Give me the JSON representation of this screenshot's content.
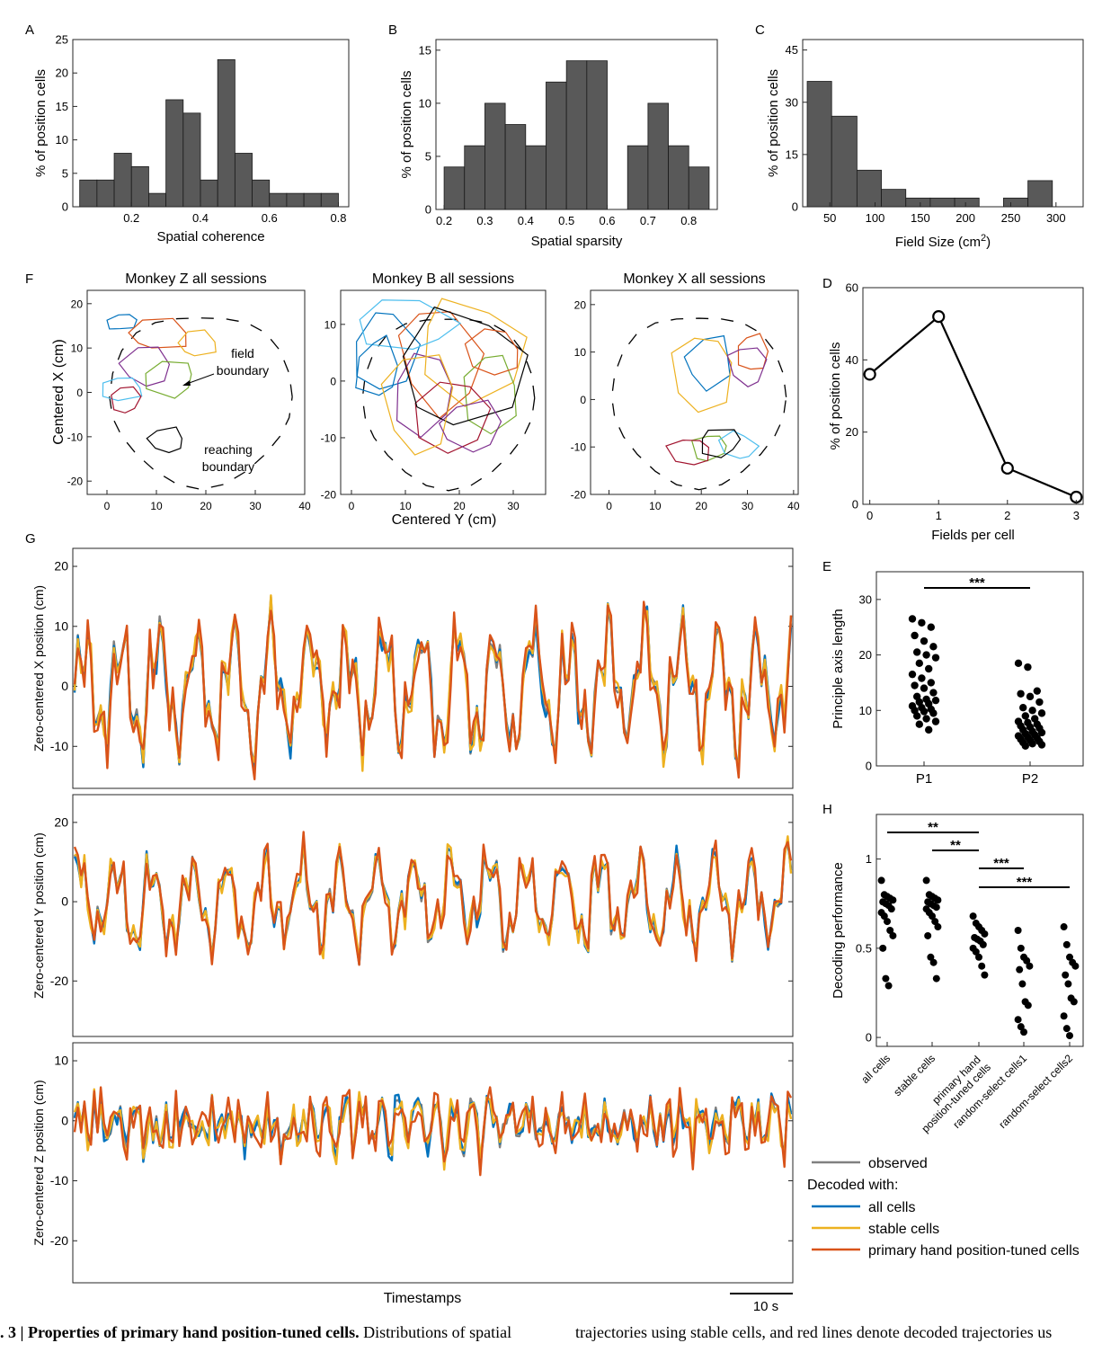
{
  "panels": {
    "A": {
      "label": "A",
      "xlabel": "Spatial coherence",
      "ylabel": "% of position cells"
    },
    "B": {
      "label": "B",
      "xlabel": "Spatial sparsity",
      "ylabel": "% of position cells"
    },
    "C": {
      "label": "C",
      "xlabel": "Field Size (cm",
      "xlabel_sup": "2",
      "xlabel_tail": ")",
      "ylabel": "% of position cells"
    },
    "D": {
      "label": "D",
      "xlabel": "Fields per cell",
      "ylabel": "% of position cells"
    },
    "E": {
      "label": "E",
      "ylabel": "Principle axis length",
      "sig": "***"
    },
    "F": {
      "label": "F",
      "titles": [
        "Monkey Z all sessions",
        "Monkey B all sessions",
        "Monkey X all sessions"
      ],
      "xlabel": "Centered Y (cm)",
      "ylabel": "Centered X (cm)",
      "annotations": [
        "field",
        "boundary",
        "reaching",
        "boundary"
      ]
    },
    "G": {
      "label": "G",
      "ylabels": [
        "Zero-centered X position (cm)",
        "Zero-centered Y position (cm)",
        "Zero-centered Z position (cm)"
      ],
      "xlabel": "Timestamps",
      "scalebar": "10 s"
    },
    "H": {
      "label": "H",
      "ylabel": "Decoding performance",
      "sig": [
        "**",
        "**",
        "***",
        "***"
      ]
    }
  },
  "legend": {
    "observed": "observed",
    "header": "Decoded with:",
    "all": "all cells",
    "stable": "stable cells",
    "primary": "primary hand position-tuned cells"
  },
  "caption": {
    "left_bold": ". 3 | Properties of primary hand position-tuned cells.",
    "left_rest": " Distributions of spatial",
    "right": "trajectories using stable cells, and red lines denote decoded trajectories us"
  },
  "colors": {
    "bar": "#595959",
    "observed": "#808080",
    "all": "#0072BD",
    "stable": "#EDB120",
    "primary": "#D95319"
  },
  "chart_data": [
    {
      "panel": "A",
      "type": "bar",
      "bin_edges": [
        0.05,
        0.1,
        0.15,
        0.2,
        0.25,
        0.3,
        0.35,
        0.4,
        0.45,
        0.5,
        0.55,
        0.6,
        0.65,
        0.7,
        0.75,
        0.8
      ],
      "values": [
        4,
        4,
        8,
        6,
        2,
        16,
        14,
        4,
        22,
        8,
        4,
        2,
        2,
        2,
        2
      ],
      "xlim": [
        0.03,
        0.83
      ],
      "ylim": [
        0,
        25
      ],
      "xticks": [
        0.2,
        0.4,
        0.6,
        0.8
      ],
      "yticks": [
        0,
        5,
        10,
        15,
        20,
        25
      ],
      "xlabel": "Spatial coherence",
      "ylabel": "% of position cells"
    },
    {
      "panel": "B",
      "type": "bar",
      "bin_edges": [
        0.2,
        0.25,
        0.3,
        0.35,
        0.4,
        0.45,
        0.5,
        0.55,
        0.6,
        0.65,
        0.7,
        0.75,
        0.8,
        0.85
      ],
      "values": [
        4,
        6,
        10,
        8,
        6,
        12,
        14,
        14,
        0,
        6,
        10,
        6,
        4
      ],
      "xlim": [
        0.18,
        0.87
      ],
      "ylim": [
        0,
        16
      ],
      "xticks": [
        0.2,
        0.3,
        0.4,
        0.5,
        0.6,
        0.7,
        0.8
      ],
      "yticks": [
        0,
        5,
        10,
        15
      ],
      "xlabel": "Spatial sparsity",
      "ylabel": "% of position cells"
    },
    {
      "panel": "C",
      "type": "bar",
      "bin_edges": [
        25,
        52,
        80,
        107,
        134,
        161,
        188,
        215,
        242,
        269,
        296,
        323
      ],
      "values": [
        36,
        26,
        10.5,
        5,
        2.5,
        2.5,
        2.5,
        0,
        2.5,
        7.5,
        0,
        5
      ],
      "xlim": [
        20,
        330
      ],
      "ylim": [
        0,
        48
      ],
      "xticks": [
        50,
        100,
        150,
        200,
        250,
        300
      ],
      "yticks": [
        0,
        15,
        30,
        45
      ],
      "xlabel": "Field Size (cm2)",
      "ylabel": "% of position cells"
    },
    {
      "panel": "D",
      "type": "line",
      "x": [
        0,
        1,
        2,
        3
      ],
      "y": [
        36,
        52,
        10,
        2
      ],
      "xlim": [
        -0.1,
        3.1
      ],
      "ylim": [
        0,
        60
      ],
      "xticks": [
        0,
        1,
        2,
        3
      ],
      "yticks": [
        0,
        20,
        40,
        60
      ],
      "xlabel": "Fields per cell",
      "ylabel": "% of position cells"
    },
    {
      "panel": "E",
      "type": "scatter",
      "categories": [
        "P1",
        "P2"
      ],
      "ylim": [
        0,
        35
      ],
      "yticks": [
        0,
        10,
        20,
        30
      ],
      "series": [
        {
          "name": "P1",
          "values": [
            26.5,
            25.8,
            25,
            23.5,
            22.5,
            21.5,
            20.5,
            20,
            19.5,
            18.5,
            17.5,
            16.5,
            15.8,
            15,
            14.5,
            14,
            13.2,
            12.5,
            12,
            11.8,
            11.5,
            11.2,
            10.8,
            10.5,
            10.2,
            10,
            9.8,
            9.5,
            9,
            8.5,
            8,
            7.5,
            6.5
          ]
        },
        {
          "name": "P2",
          "values": [
            18.5,
            17.8,
            13.5,
            13,
            12.5,
            11.5,
            10.5,
            10,
            9.5,
            9,
            8.5,
            8,
            7.8,
            7.5,
            7.2,
            7,
            6.8,
            6.5,
            6.2,
            6,
            5.8,
            5.6,
            5.4,
            5.2,
            5,
            4.8,
            4.6,
            4.4,
            4.2,
            4,
            3.8,
            3.6
          ]
        }
      ]
    },
    {
      "panel": "H",
      "type": "scatter",
      "categories": [
        "all cells",
        "stable cells",
        "primary hand\nposition-tuned cells",
        "random-select cells1",
        "random-select cells2"
      ],
      "ylim": [
        -0.05,
        1.25
      ],
      "yticks": [
        0,
        0.5,
        1
      ],
      "series": [
        {
          "name": "all cells",
          "values": [
            0.88,
            0.8,
            0.79,
            0.78,
            0.77,
            0.76,
            0.75,
            0.74,
            0.72,
            0.7,
            0.68,
            0.65,
            0.6,
            0.57,
            0.5,
            0.33,
            0.29
          ]
        },
        {
          "name": "stable cells",
          "values": [
            0.88,
            0.8,
            0.79,
            0.78,
            0.77,
            0.76,
            0.75,
            0.74,
            0.73,
            0.72,
            0.7,
            0.68,
            0.65,
            0.62,
            0.57,
            0.45,
            0.42,
            0.33
          ]
        },
        {
          "name": "primary hand position-tuned cells",
          "values": [
            0.68,
            0.64,
            0.62,
            0.6,
            0.58,
            0.56,
            0.55,
            0.54,
            0.52,
            0.5,
            0.48,
            0.45,
            0.4,
            0.35
          ]
        },
        {
          "name": "random-select cells1",
          "values": [
            0.6,
            0.5,
            0.45,
            0.43,
            0.4,
            0.38,
            0.3,
            0.2,
            0.18,
            0.1,
            0.06,
            0.03
          ]
        },
        {
          "name": "random-select cells2",
          "values": [
            0.62,
            0.52,
            0.45,
            0.42,
            0.4,
            0.35,
            0.3,
            0.22,
            0.2,
            0.12,
            0.05,
            0.01
          ]
        }
      ]
    },
    {
      "panel": "G",
      "type": "line",
      "subplots": [
        {
          "ylabel": "Zero-centered X position (cm)",
          "ylim": [
            -17,
            23
          ],
          "yticks": [
            -10,
            0,
            10,
            20
          ]
        },
        {
          "ylabel": "Zero-centered Y position (cm)",
          "ylim": [
            -34,
            27
          ],
          "yticks": [
            -20,
            0,
            20
          ]
        },
        {
          "ylabel": "Zero-centered Z position (cm)",
          "ylim": [
            -27,
            13
          ],
          "yticks": [
            -20,
            -10,
            0,
            10
          ]
        }
      ],
      "series": [
        "observed",
        "all cells",
        "stable cells",
        "primary hand position-tuned cells"
      ]
    },
    {
      "panel": "F",
      "type": "scatter",
      "subplots": [
        {
          "title": "Monkey Z all sessions",
          "xlim": [
            -4,
            40
          ],
          "ylim": [
            -23,
            23
          ],
          "xticks": [
            0,
            10,
            20,
            30,
            40
          ],
          "yticks": [
            -20,
            -10,
            0,
            10,
            20
          ]
        },
        {
          "title": "Monkey B all sessions",
          "xlim": [
            -2,
            36
          ],
          "ylim": [
            -20,
            16
          ],
          "xticks": [
            0,
            10,
            20,
            30
          ],
          "yticks": [
            -20,
            -10,
            0,
            10
          ]
        },
        {
          "title": "Monkey X all sessions",
          "xlim": [
            -4,
            41
          ],
          "ylim": [
            -20,
            23
          ],
          "xticks": [
            0,
            10,
            20,
            30,
            40
          ],
          "yticks": [
            -20,
            -10,
            0,
            10,
            20
          ]
        }
      ]
    }
  ]
}
